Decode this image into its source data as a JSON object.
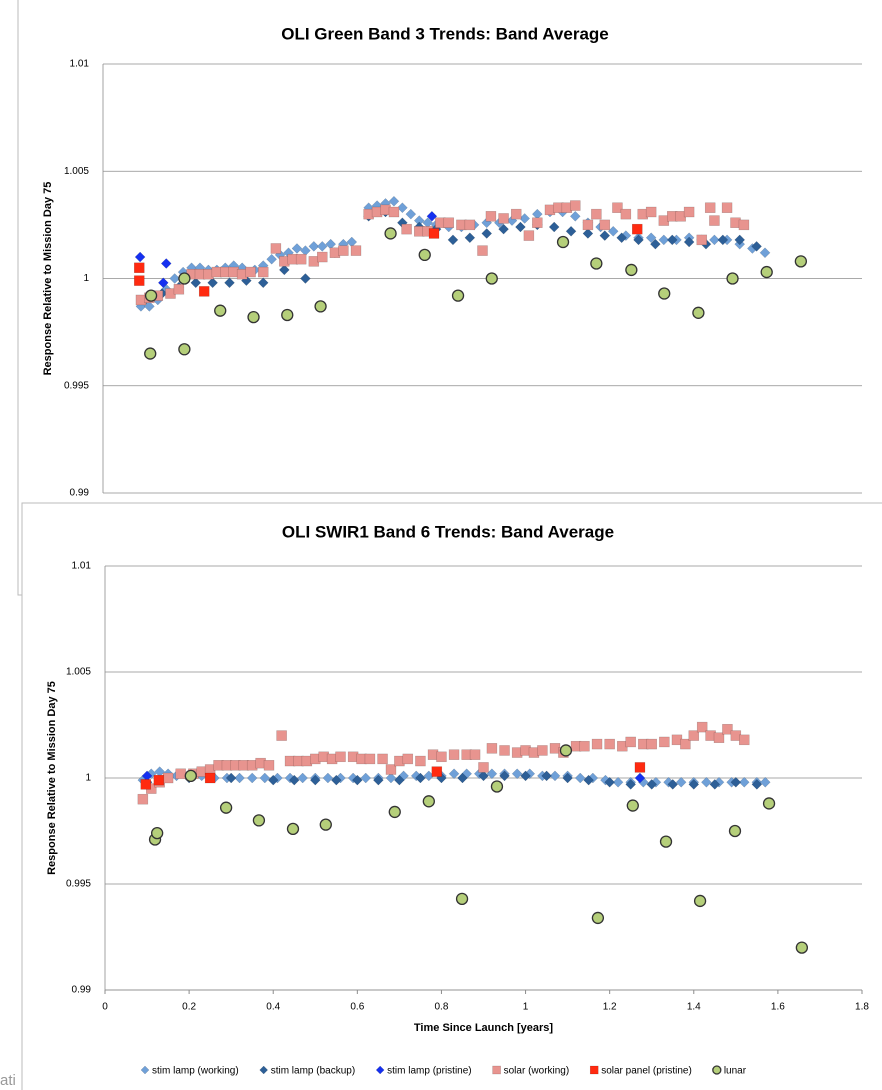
{
  "chart_data": [
    {
      "type": "scatter",
      "title": "OLI Green Band 3 Trends: Band Average",
      "y_label": "Response Relative to Mission Day 75",
      "xlim": [
        0,
        1.8
      ],
      "ylim": [
        0.99,
        1.01
      ],
      "yticks": [
        0.99,
        0.995,
        1,
        1.005,
        1.01
      ],
      "grid": true,
      "series": [
        {
          "color": "#6fa0d8",
          "marker": "diamond",
          "x": [
            0.09,
            0.11,
            0.13,
            0.15,
            0.17,
            0.19,
            0.21,
            0.23,
            0.25,
            0.27,
            0.29,
            0.31,
            0.33,
            0.36,
            0.38,
            0.4,
            0.42,
            0.44,
            0.46,
            0.48,
            0.5,
            0.52,
            0.54,
            0.57,
            0.59,
            0.63,
            0.65,
            0.67,
            0.69,
            0.71,
            0.73,
            0.75,
            0.77,
            0.79,
            0.82,
            0.85,
            0.88,
            0.91,
            0.94,
            0.97,
            1.0,
            1.03,
            1.06,
            1.09,
            1.12,
            1.15,
            1.18,
            1.21,
            1.24,
            1.27,
            1.3,
            1.33,
            1.36,
            1.39,
            1.42,
            1.45,
            1.48,
            1.51,
            1.54,
            1.57
          ],
          "values": [
            0.9987,
            0.9987,
            0.999,
            0.9995,
            1.0,
            1.0003,
            1.0005,
            1.0005,
            1.0004,
            1.0004,
            1.0005,
            1.0006,
            1.0005,
            1.0004,
            1.0006,
            1.0009,
            1.0011,
            1.0012,
            1.0014,
            1.0013,
            1.0015,
            1.0015,
            1.0016,
            1.0016,
            1.0017,
            1.0033,
            1.0034,
            1.0035,
            1.0036,
            1.0033,
            1.003,
            1.0027,
            1.0026,
            1.0025,
            1.0024,
            1.0024,
            1.0025,
            1.0026,
            1.0026,
            1.0027,
            1.0028,
            1.003,
            1.0031,
            1.0031,
            1.0029,
            1.0026,
            1.0024,
            1.0022,
            1.002,
            1.0019,
            1.0019,
            1.0018,
            1.0018,
            1.0019,
            1.0018,
            1.0018,
            1.0018,
            1.0016,
            1.0014,
            1.0012
          ]
        },
        {
          "color": "#2d5f97",
          "marker": "diamond",
          "x": [
            0.1,
            0.14,
            0.18,
            0.22,
            0.26,
            0.3,
            0.34,
            0.38,
            0.43,
            0.48,
            0.55,
            0.63,
            0.67,
            0.71,
            0.75,
            0.79,
            0.83,
            0.87,
            0.91,
            0.95,
            0.99,
            1.03,
            1.07,
            1.11,
            1.15,
            1.19,
            1.23,
            1.27,
            1.31,
            1.35,
            1.39,
            1.43,
            1.47,
            1.51,
            1.55
          ],
          "values": [
            0.999,
            0.9993,
            0.9996,
            0.9998,
            0.9998,
            0.9998,
            0.9999,
            0.9998,
            1.0004,
            1.0,
            1.0012,
            1.0029,
            1.0031,
            1.0026,
            1.0024,
            1.0023,
            1.0018,
            1.0019,
            1.0021,
            1.0023,
            1.0024,
            1.0025,
            1.0024,
            1.0022,
            1.0021,
            1.002,
            1.0019,
            1.0018,
            1.0016,
            1.0018,
            1.0017,
            1.0016,
            1.0018,
            1.0018,
            1.0015
          ]
        },
        {
          "color": "#1530f0",
          "marker": "diamond",
          "x": [
            0.088,
            0.15,
            0.143,
            0.78
          ],
          "values": [
            1.001,
            1.0007,
            0.9998,
            1.0029
          ]
        },
        {
          "color": "#e8948f",
          "marker": "square",
          "x": [
            0.09,
            0.11,
            0.13,
            0.16,
            0.18,
            0.21,
            0.23,
            0.25,
            0.27,
            0.29,
            0.31,
            0.33,
            0.35,
            0.38,
            0.41,
            0.43,
            0.45,
            0.47,
            0.5,
            0.52,
            0.55,
            0.57,
            0.6,
            0.63,
            0.65,
            0.67,
            0.69,
            0.72,
            0.75,
            0.77,
            0.8,
            0.82,
            0.85,
            0.87,
            0.9,
            0.92,
            0.95,
            0.98,
            1.01,
            1.03,
            1.06,
            1.08,
            1.1,
            1.12,
            1.15,
            1.17,
            1.19,
            1.22,
            1.24,
            1.28,
            1.3,
            1.33,
            1.35,
            1.37,
            1.39,
            1.42,
            1.44,
            1.45,
            1.48,
            1.5,
            1.52
          ],
          "values": [
            0.999,
            0.9991,
            0.9992,
            0.9993,
            0.9995,
            1.0002,
            1.0002,
            1.0002,
            1.0003,
            1.0003,
            1.0003,
            1.0002,
            1.0003,
            1.0003,
            1.0014,
            1.0008,
            1.0009,
            1.0009,
            1.0008,
            1.001,
            1.0012,
            1.0013,
            1.0013,
            1.003,
            1.0031,
            1.0032,
            1.0031,
            1.0023,
            1.0022,
            1.0022,
            1.0026,
            1.0026,
            1.0025,
            1.0025,
            1.0013,
            1.0029,
            1.0028,
            1.003,
            1.002,
            1.0026,
            1.0032,
            1.0033,
            1.0033,
            1.0034,
            1.0025,
            1.003,
            1.0025,
            1.0033,
            1.003,
            1.003,
            1.0031,
            1.0027,
            1.0029,
            1.0029,
            1.0031,
            1.0018,
            1.0033,
            1.0027,
            1.0033,
            1.0026,
            1.0025
          ]
        },
        {
          "color": "#ff2a10",
          "marker": "square",
          "x": [
            0.086,
            0.086,
            0.24,
            0.785,
            1.267
          ],
          "values": [
            1.0005,
            0.9999,
            0.9994,
            1.0021,
            1.0023
          ]
        },
        {
          "color": "#b5cf7a",
          "marker": "circle",
          "x": [
            0.112,
            0.114,
            0.193,
            0.193,
            0.278,
            0.357,
            0.437,
            0.516,
            0.682,
            0.763,
            0.842,
            0.922,
            1.091,
            1.17,
            1.253,
            1.331,
            1.412,
            1.493,
            1.574,
            1.655
          ],
          "values": [
            0.9965,
            0.9992,
            0.9967,
            1.0,
            0.9985,
            0.9982,
            0.9983,
            0.9987,
            1.0021,
            1.0011,
            0.9992,
            1.0,
            1.0017,
            1.0007,
            1.0004,
            0.9993,
            0.9984,
            1.0,
            1.0003,
            1.0008
          ]
        }
      ]
    },
    {
      "type": "scatter",
      "title": "OLI SWIR1 Band 6 Trends: Band Average",
      "y_label": "Response Relative to Mission Day 75",
      "x_label": "Time Since Launch [years]",
      "xlim": [
        0,
        1.8
      ],
      "xticks": [
        0,
        0.2,
        0.4,
        0.6,
        0.8,
        1,
        1.2,
        1.4,
        1.6,
        1.8
      ],
      "ylim": [
        0.99,
        1.01
      ],
      "yticks": [
        0.99,
        0.995,
        1,
        1.005,
        1.01
      ],
      "grid": true,
      "legend": "bottom",
      "series": [
        {
          "name": "stim lamp (working)",
          "color": "#6fa0d8",
          "marker": "diamond",
          "x": [
            0.09,
            0.11,
            0.13,
            0.15,
            0.17,
            0.2,
            0.23,
            0.26,
            0.29,
            0.32,
            0.35,
            0.38,
            0.41,
            0.44,
            0.47,
            0.5,
            0.53,
            0.56,
            0.59,
            0.62,
            0.65,
            0.68,
            0.71,
            0.74,
            0.77,
            0.8,
            0.83,
            0.86,
            0.89,
            0.92,
            0.95,
            0.98,
            1.01,
            1.04,
            1.07,
            1.1,
            1.13,
            1.16,
            1.19,
            1.22,
            1.25,
            1.28,
            1.31,
            1.34,
            1.37,
            1.4,
            1.43,
            1.46,
            1.49,
            1.52,
            1.55,
            1.57
          ],
          "values": [
            0.9999,
            1.0002,
            1.0003,
            1.0002,
            1.0001,
            1.0001,
            1.0001,
            1.0,
            1.0,
            1.0,
            1.0,
            1.0,
            1.0,
            1.0,
            1.0,
            1.0,
            1.0,
            1.0,
            1.0,
            1.0,
            1.0,
            1.0,
            1.0001,
            1.0001,
            1.0001,
            1.0001,
            1.0002,
            1.0002,
            1.0002,
            1.0002,
            1.0002,
            1.0002,
            1.0002,
            1.0001,
            1.0001,
            1.0001,
            1.0,
            1.0,
            0.9999,
            0.9998,
            0.9998,
            0.9998,
            0.9998,
            0.9998,
            0.9998,
            0.9998,
            0.9998,
            0.9998,
            0.9998,
            0.9998,
            0.9998,
            0.9998
          ]
        },
        {
          "name": "stim lamp (backup)",
          "color": "#2d5f97",
          "marker": "diamond",
          "x": [
            0.1,
            0.2,
            0.3,
            0.4,
            0.45,
            0.5,
            0.55,
            0.6,
            0.65,
            0.7,
            0.75,
            0.8,
            0.85,
            0.9,
            0.95,
            1.0,
            1.05,
            1.1,
            1.15,
            1.2,
            1.25,
            1.3,
            1.35,
            1.4,
            1.45,
            1.5,
            1.55
          ],
          "values": [
            0.9998,
            1.0,
            1.0,
            0.9999,
            0.9999,
            0.9999,
            0.9999,
            0.9999,
            0.9999,
            0.9999,
            1.0,
            1.0,
            1.0,
            1.0001,
            1.0001,
            1.0001,
            1.0001,
            1.0,
            0.9999,
            0.9998,
            0.9997,
            0.9997,
            0.9997,
            0.9997,
            0.9997,
            0.9998,
            0.9997
          ]
        },
        {
          "name": "stim lamp (pristine)",
          "color": "#1530f0",
          "marker": "diamond",
          "x": [
            0.1,
            1.272
          ],
          "values": [
            1.0001,
            1.0
          ]
        },
        {
          "name": "solar (working)",
          "color": "#e8948f",
          "marker": "square",
          "x": [
            0.09,
            0.11,
            0.13,
            0.15,
            0.18,
            0.21,
            0.23,
            0.25,
            0.27,
            0.29,
            0.31,
            0.33,
            0.35,
            0.37,
            0.39,
            0.42,
            0.44,
            0.46,
            0.48,
            0.5,
            0.52,
            0.54,
            0.56,
            0.59,
            0.61,
            0.63,
            0.66,
            0.68,
            0.7,
            0.72,
            0.75,
            0.78,
            0.8,
            0.83,
            0.86,
            0.88,
            0.9,
            0.92,
            0.95,
            0.98,
            1.0,
            1.02,
            1.04,
            1.07,
            1.09,
            1.12,
            1.14,
            1.17,
            1.2,
            1.23,
            1.25,
            1.28,
            1.3,
            1.33,
            1.36,
            1.38,
            1.4,
            1.42,
            1.44,
            1.46,
            1.48,
            1.5,
            1.52
          ],
          "values": [
            0.999,
            0.9995,
            0.9998,
            1.0,
            1.0002,
            1.0002,
            1.0003,
            1.0004,
            1.0006,
            1.0006,
            1.0006,
            1.0006,
            1.0006,
            1.0007,
            1.0006,
            1.002,
            1.0008,
            1.0008,
            1.0008,
            1.0009,
            1.001,
            1.0009,
            1.001,
            1.001,
            1.0009,
            1.0009,
            1.0009,
            1.0004,
            1.0008,
            1.0009,
            1.0008,
            1.0011,
            1.001,
            1.0011,
            1.0011,
            1.0011,
            1.0005,
            1.0014,
            1.0013,
            1.0012,
            1.0013,
            1.0012,
            1.0013,
            1.0014,
            1.0012,
            1.0015,
            1.0015,
            1.0016,
            1.0016,
            1.0015,
            1.0017,
            1.0016,
            1.0016,
            1.0017,
            1.0018,
            1.0016,
            1.002,
            1.0024,
            1.002,
            1.0019,
            1.0023,
            1.002,
            1.0018
          ]
        },
        {
          "name": "solar panel (pristine)",
          "color": "#ff2a10",
          "marker": "square",
          "x": [
            0.097,
            0.128,
            0.25,
            0.789,
            1.272
          ],
          "values": [
            0.9997,
            0.9999,
            1.0,
            1.0003,
            1.0005
          ]
        },
        {
          "name": "lunar",
          "color": "#b5cf7a",
          "marker": "circle",
          "x": [
            0.119,
            0.124,
            0.204,
            0.288,
            0.366,
            0.447,
            0.525,
            0.689,
            0.77,
            0.849,
            0.932,
            1.096,
            1.172,
            1.255,
            1.334,
            1.415,
            1.498,
            1.579,
            1.657
          ],
          "values": [
            0.9971,
            0.9974,
            1.0001,
            0.9986,
            0.998,
            0.9976,
            0.9978,
            0.9984,
            0.9989,
            0.9943,
            0.9996,
            1.0013,
            0.9934,
            0.9987,
            0.997,
            0.9942,
            0.9975,
            0.9988,
            0.992
          ]
        }
      ]
    }
  ],
  "background_text": "ati"
}
